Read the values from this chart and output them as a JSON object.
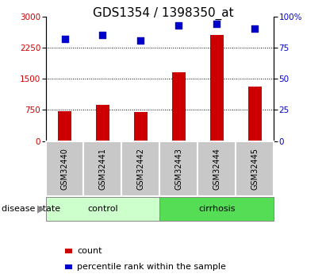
{
  "title": "GDS1354 / 1398350_at",
  "samples": [
    "GSM32440",
    "GSM32441",
    "GSM32442",
    "GSM32443",
    "GSM32444",
    "GSM32445"
  ],
  "counts": [
    720,
    870,
    710,
    1650,
    2550,
    1320
  ],
  "percentile_ranks": [
    82,
    85,
    81,
    93,
    94,
    90
  ],
  "ylim_left": [
    0,
    3000
  ],
  "ylim_right": [
    0,
    100
  ],
  "yticks_left": [
    0,
    750,
    1500,
    2250,
    3000
  ],
  "yticks_right": [
    0,
    25,
    50,
    75,
    100
  ],
  "bar_color": "#cc0000",
  "dot_color": "#0000cc",
  "control_group_n": 3,
  "cirrhosis_group_n": 3,
  "control_label": "control",
  "cirrhosis_label": "cirrhosis",
  "disease_state_label": "disease state",
  "legend_count": "count",
  "legend_percentile": "percentile rank within the sample",
  "control_color": "#ccffcc",
  "cirrhosis_color": "#55dd55",
  "sample_box_color": "#c8c8c8",
  "bar_width": 0.35,
  "dot_size": 35,
  "title_fontsize": 11,
  "tick_fontsize": 7.5,
  "label_fontsize": 8.5
}
